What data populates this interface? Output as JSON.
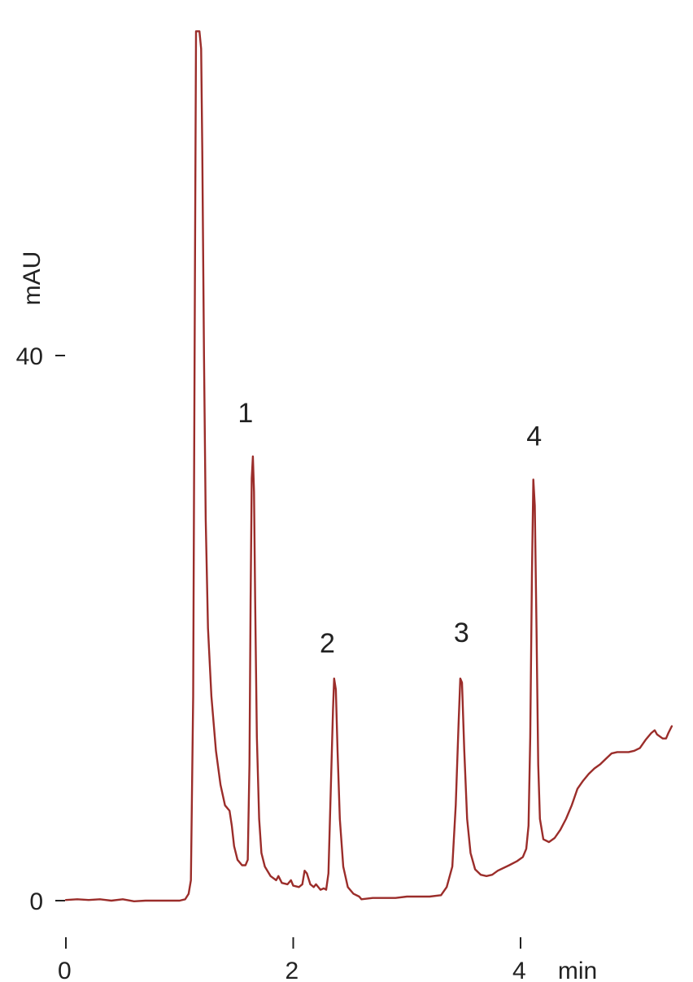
{
  "chart_data": {
    "type": "line",
    "title": "",
    "xlabel": "min",
    "ylabel": "mAU",
    "xlim": [
      0,
      5.4
    ],
    "ylim": [
      -2.6,
      64.5
    ],
    "grid": false,
    "legend": "none",
    "x_ticks": [
      {
        "value": 0,
        "label": "0"
      },
      {
        "value": 2,
        "label": "2"
      },
      {
        "value": 4,
        "label": "4"
      }
    ],
    "y_ticks": [
      {
        "value": 0,
        "label": "0"
      },
      {
        "value": 40,
        "label": "40"
      }
    ],
    "line_color": "#9b2d2a",
    "annotations": [
      {
        "text": "1",
        "x": 1.58,
        "y": 35.1
      },
      {
        "text": "2",
        "x": 2.3,
        "y": 18.2
      },
      {
        "text": "3",
        "x": 3.48,
        "y": 19.0
      },
      {
        "text": "4",
        "x": 4.12,
        "y": 33.4
      }
    ],
    "series": [
      {
        "points": [
          [
            0.0,
            0.05
          ],
          [
            0.1,
            0.1
          ],
          [
            0.2,
            0.05
          ],
          [
            0.3,
            0.1
          ],
          [
            0.4,
            0.0
          ],
          [
            0.5,
            0.1
          ],
          [
            0.6,
            -0.05
          ],
          [
            0.7,
            0.0
          ],
          [
            0.8,
            0.0
          ],
          [
            0.9,
            0.0
          ],
          [
            1.0,
            0.0
          ],
          [
            1.05,
            0.1
          ],
          [
            1.08,
            0.5
          ],
          [
            1.1,
            1.5
          ],
          [
            1.12,
            15.0
          ],
          [
            1.135,
            45.0
          ],
          [
            1.145,
            63.8
          ],
          [
            1.175,
            63.8
          ],
          [
            1.19,
            62.5
          ],
          [
            1.2,
            55.0
          ],
          [
            1.215,
            40.0
          ],
          [
            1.23,
            28.0
          ],
          [
            1.25,
            20.0
          ],
          [
            1.28,
            15.0
          ],
          [
            1.32,
            11.0
          ],
          [
            1.36,
            8.5
          ],
          [
            1.4,
            7.0
          ],
          [
            1.44,
            6.6
          ],
          [
            1.46,
            5.5
          ],
          [
            1.48,
            4.0
          ],
          [
            1.51,
            3.0
          ],
          [
            1.55,
            2.6
          ],
          [
            1.58,
            2.6
          ],
          [
            1.6,
            3.0
          ],
          [
            1.615,
            10.0
          ],
          [
            1.625,
            22.0
          ],
          [
            1.635,
            31.0
          ],
          [
            1.645,
            32.6
          ],
          [
            1.655,
            30.0
          ],
          [
            1.665,
            22.0
          ],
          [
            1.68,
            12.0
          ],
          [
            1.7,
            6.0
          ],
          [
            1.72,
            3.5
          ],
          [
            1.75,
            2.5
          ],
          [
            1.8,
            1.8
          ],
          [
            1.85,
            1.5
          ],
          [
            1.87,
            1.8
          ],
          [
            1.9,
            1.3
          ],
          [
            1.95,
            1.2
          ],
          [
            1.98,
            1.5
          ],
          [
            2.0,
            1.1
          ],
          [
            2.05,
            1.0
          ],
          [
            2.08,
            1.2
          ],
          [
            2.1,
            2.2
          ],
          [
            2.12,
            2.0
          ],
          [
            2.15,
            1.2
          ],
          [
            2.18,
            1.0
          ],
          [
            2.2,
            1.2
          ],
          [
            2.24,
            0.8
          ],
          [
            2.27,
            0.9
          ],
          [
            2.29,
            0.8
          ],
          [
            2.31,
            2.0
          ],
          [
            2.33,
            8.0
          ],
          [
            2.35,
            14.0
          ],
          [
            2.36,
            16.3
          ],
          [
            2.375,
            15.5
          ],
          [
            2.39,
            11.0
          ],
          [
            2.41,
            6.0
          ],
          [
            2.44,
            2.5
          ],
          [
            2.48,
            1.0
          ],
          [
            2.53,
            0.5
          ],
          [
            2.58,
            0.3
          ],
          [
            2.6,
            0.1
          ],
          [
            2.7,
            0.2
          ],
          [
            2.8,
            0.2
          ],
          [
            2.9,
            0.2
          ],
          [
            3.0,
            0.3
          ],
          [
            3.1,
            0.3
          ],
          [
            3.2,
            0.3
          ],
          [
            3.3,
            0.4
          ],
          [
            3.35,
            1.0
          ],
          [
            3.4,
            2.5
          ],
          [
            3.43,
            7.0
          ],
          [
            3.455,
            13.0
          ],
          [
            3.47,
            16.3
          ],
          [
            3.485,
            16.0
          ],
          [
            3.505,
            11.0
          ],
          [
            3.53,
            6.0
          ],
          [
            3.56,
            3.5
          ],
          [
            3.6,
            2.3
          ],
          [
            3.65,
            1.9
          ],
          [
            3.7,
            1.8
          ],
          [
            3.75,
            1.9
          ],
          [
            3.8,
            2.2
          ],
          [
            3.9,
            2.6
          ],
          [
            3.97,
            2.9
          ],
          [
            4.02,
            3.2
          ],
          [
            4.05,
            3.8
          ],
          [
            4.07,
            5.5
          ],
          [
            4.085,
            12.0
          ],
          [
            4.1,
            24.0
          ],
          [
            4.112,
            30.9
          ],
          [
            4.125,
            29.0
          ],
          [
            4.14,
            20.0
          ],
          [
            4.155,
            10.0
          ],
          [
            4.17,
            6.0
          ],
          [
            4.2,
            4.5
          ],
          [
            4.25,
            4.3
          ],
          [
            4.3,
            4.6
          ],
          [
            4.35,
            5.2
          ],
          [
            4.4,
            6.0
          ],
          [
            4.45,
            7.0
          ],
          [
            4.5,
            8.2
          ],
          [
            4.55,
            8.8
          ],
          [
            4.6,
            9.3
          ],
          [
            4.65,
            9.7
          ],
          [
            4.7,
            10.0
          ],
          [
            4.75,
            10.4
          ],
          [
            4.8,
            10.8
          ],
          [
            4.85,
            10.9
          ],
          [
            4.9,
            10.9
          ],
          [
            4.95,
            10.9
          ],
          [
            5.0,
            11.0
          ],
          [
            5.05,
            11.2
          ],
          [
            5.1,
            11.8
          ],
          [
            5.15,
            12.3
          ],
          [
            5.18,
            12.5
          ],
          [
            5.2,
            12.2
          ],
          [
            5.25,
            11.9
          ],
          [
            5.28,
            11.9
          ],
          [
            5.3,
            12.3
          ],
          [
            5.33,
            12.8
          ]
        ]
      }
    ]
  }
}
